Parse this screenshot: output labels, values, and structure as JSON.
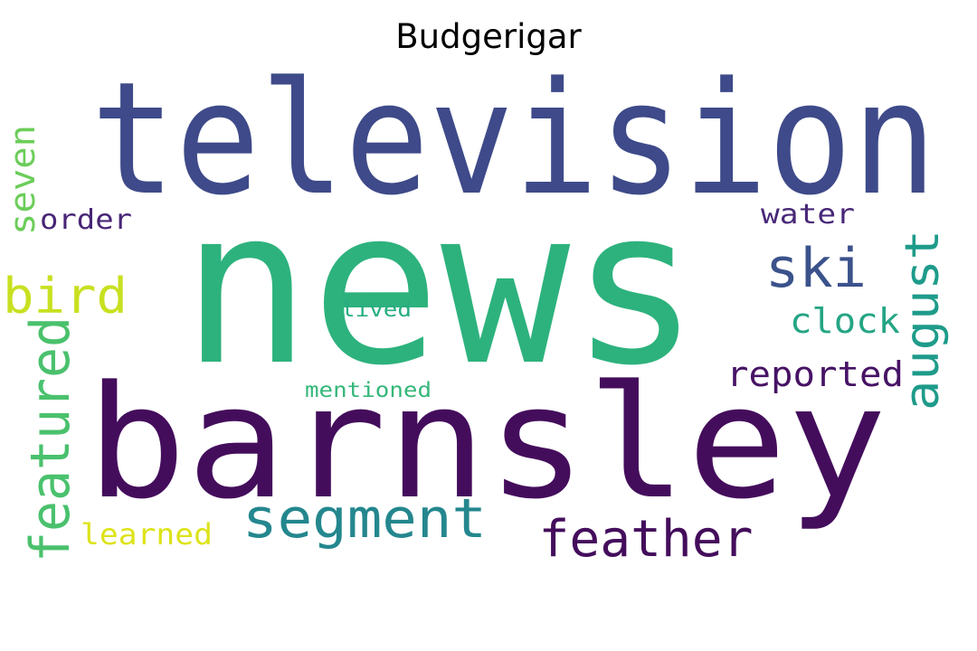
{
  "title": "Budgerigar",
  "words": [
    {
      "text": "news",
      "color": "#2db27d"
    },
    {
      "text": "television",
      "color": "#3e4a89"
    },
    {
      "text": "barnsley",
      "color": "#440d5c"
    },
    {
      "text": "segment",
      "color": "#24878e"
    },
    {
      "text": "feather",
      "color": "#440d5c"
    },
    {
      "text": "featured",
      "color": "#4ac16d"
    },
    {
      "text": "august",
      "color": "#1e9b8a"
    },
    {
      "text": "ski",
      "color": "#3b528b"
    },
    {
      "text": "bird",
      "color": "#c8e020"
    },
    {
      "text": "clock",
      "color": "#25a584"
    },
    {
      "text": "reported",
      "color": "#471365"
    },
    {
      "text": "seven",
      "color": "#6ccd5a"
    },
    {
      "text": "order",
      "color": "#482576"
    },
    {
      "text": "water",
      "color": "#482878"
    },
    {
      "text": "learned",
      "color": "#dde318"
    },
    {
      "text": "lived",
      "color": "#26ad81"
    },
    {
      "text": "mentioned",
      "color": "#35b779"
    }
  ]
}
